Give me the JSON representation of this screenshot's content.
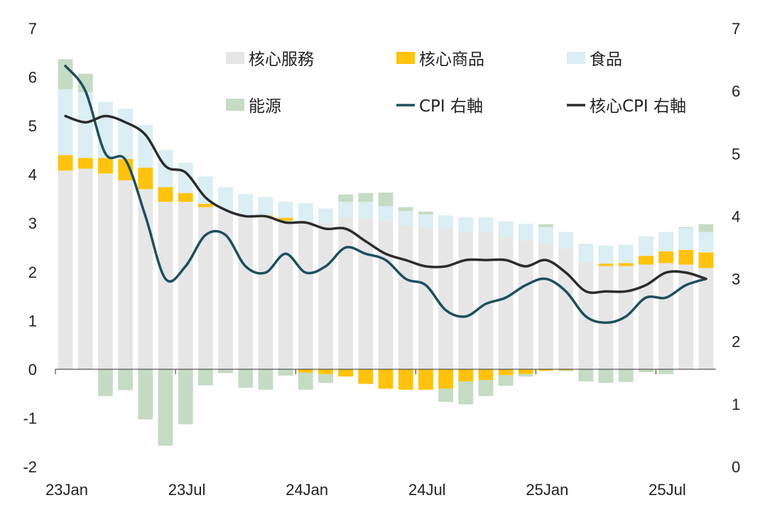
{
  "chart_data": {
    "type": "bar",
    "stacked": true,
    "categories": [
      "23Jan",
      "23Feb",
      "23Mar",
      "23Apr",
      "23May",
      "23Jun",
      "23Jul",
      "23Aug",
      "23Sep",
      "23Oct",
      "23Nov",
      "23Dec",
      "24Jan",
      "24Feb",
      "24Mar",
      "24Apr",
      "24May",
      "24Jun",
      "24Jul",
      "24Aug",
      "24Sep",
      "24Oct",
      "24Nov",
      "24Dec",
      "25Jan",
      "25Feb",
      "25Mar",
      "25Apr",
      "25May",
      "25Jun",
      "25Jul",
      "25Aug",
      "25Sep"
    ],
    "x_tick_labels": [
      "23Jan",
      "23Jul",
      "24Jan",
      "24Jul",
      "25Jan",
      "25Jul"
    ],
    "x_tick_indices": [
      0,
      6,
      12,
      18,
      24,
      30
    ],
    "y_left": {
      "min": -2,
      "max": 7,
      "ticks": [
        "7",
        "6",
        "5",
        "4",
        "3",
        "2",
        "1",
        "0",
        "-1",
        "-2"
      ]
    },
    "y_right": {
      "min": 0,
      "max": 7,
      "ticks": [
        "7",
        "6",
        "5",
        "4",
        "3",
        "2",
        "1",
        "0"
      ]
    },
    "legend_position": "top-right",
    "grid": false,
    "bar_series": [
      {
        "name": "核心服務",
        "color": "#e6e6e6",
        "values": [
          4.08,
          4.12,
          4.02,
          3.88,
          3.7,
          3.44,
          3.44,
          3.33,
          3.22,
          3.14,
          3.12,
          3.05,
          3.05,
          3.0,
          3.12,
          3.1,
          3.05,
          2.95,
          2.9,
          2.9,
          2.82,
          2.82,
          2.72,
          2.65,
          2.58,
          2.48,
          2.2,
          2.12,
          2.12,
          2.15,
          2.18,
          2.15,
          2.08
        ]
      },
      {
        "name": "核心商品",
        "color": "#ffc20e",
        "values": [
          0.32,
          0.22,
          0.32,
          0.44,
          0.44,
          0.3,
          0.18,
          0.07,
          0.0,
          0.0,
          0.04,
          0.06,
          -0.07,
          -0.1,
          -0.15,
          -0.3,
          -0.4,
          -0.42,
          -0.42,
          -0.4,
          -0.25,
          -0.22,
          -0.12,
          -0.1,
          -0.03,
          -0.02,
          0.0,
          0.05,
          0.06,
          0.18,
          0.24,
          0.3,
          0.32
        ]
      },
      {
        "name": "食品",
        "color": "#daeef3",
        "values": [
          1.35,
          1.35,
          1.15,
          1.03,
          0.88,
          0.76,
          0.62,
          0.56,
          0.52,
          0.46,
          0.38,
          0.33,
          0.36,
          0.3,
          0.32,
          0.34,
          0.3,
          0.3,
          0.28,
          0.26,
          0.3,
          0.3,
          0.32,
          0.34,
          0.34,
          0.34,
          0.38,
          0.37,
          0.38,
          0.4,
          0.4,
          0.45,
          0.42
        ]
      },
      {
        "name": "能源",
        "color": "#c5dbc4",
        "values": [
          0.62,
          0.38,
          -0.55,
          -0.43,
          -1.03,
          -1.57,
          -1.13,
          -0.33,
          -0.08,
          -0.38,
          -0.42,
          -0.13,
          -0.35,
          -0.18,
          0.15,
          0.18,
          0.28,
          0.08,
          0.06,
          -0.27,
          -0.47,
          -0.33,
          -0.22,
          -0.05,
          0.06,
          -0.02,
          -0.25,
          -0.28,
          -0.26,
          -0.06,
          -0.1,
          0.02,
          0.16
        ]
      }
    ],
    "line_series": [
      {
        "name": "CPI 右軸",
        "color": "#1d4f5e",
        "axis": "right",
        "values": [
          6.4,
          6.0,
          5.0,
          4.9,
          4.0,
          3.0,
          3.2,
          3.7,
          3.7,
          3.2,
          3.1,
          3.4,
          3.1,
          3.2,
          3.5,
          3.4,
          3.3,
          3.0,
          2.9,
          2.5,
          2.4,
          2.6,
          2.7,
          2.9,
          3.0,
          2.8,
          2.4,
          2.3,
          2.4,
          2.7,
          2.7,
          2.9,
          3.0
        ]
      },
      {
        "name": "核心CPI 右軸",
        "color": "#2b2b2b",
        "axis": "right",
        "values": [
          5.6,
          5.5,
          5.6,
          5.5,
          5.3,
          4.8,
          4.7,
          4.3,
          4.1,
          4.0,
          4.0,
          3.9,
          3.9,
          3.8,
          3.8,
          3.6,
          3.4,
          3.3,
          3.2,
          3.2,
          3.3,
          3.3,
          3.3,
          3.2,
          3.3,
          3.1,
          2.8,
          2.8,
          2.8,
          2.9,
          3.1,
          3.1,
          3.0
        ]
      }
    ]
  }
}
